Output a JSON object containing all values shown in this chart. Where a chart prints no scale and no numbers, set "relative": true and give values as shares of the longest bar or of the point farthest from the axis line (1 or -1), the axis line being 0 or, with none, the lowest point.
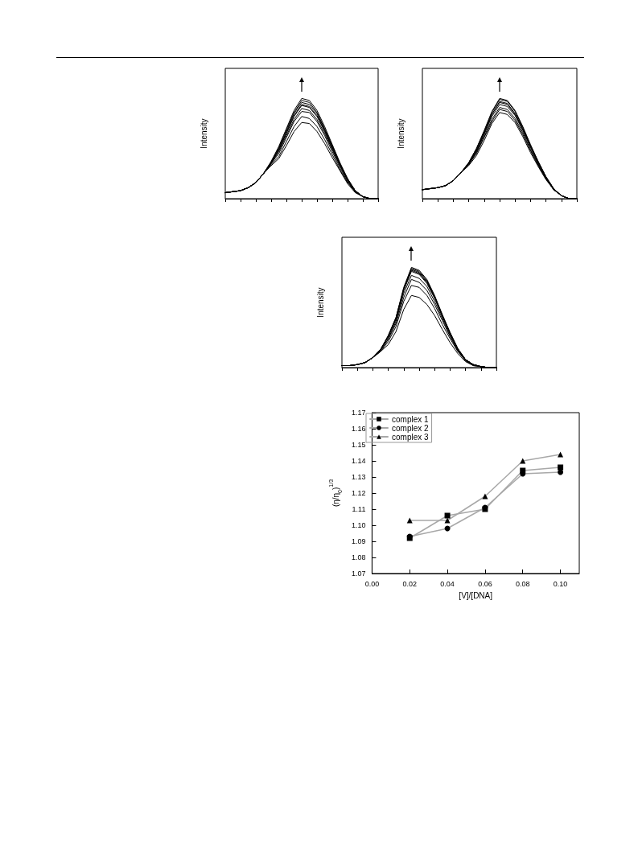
{
  "chart_data": [
    {
      "type": "line",
      "ylabel": "Intensity",
      "relative": true,
      "grid": false,
      "categories": [
        null,
        null,
        null,
        null,
        null,
        null,
        null,
        null,
        null,
        null,
        null,
        null,
        null,
        null,
        null,
        null,
        null,
        null,
        null,
        null,
        null
      ],
      "series": [
        {
          "color": "#000000",
          "values": [
            0.06,
            0.07,
            0.08,
            0.11,
            0.16,
            0.25,
            0.37,
            0.52,
            0.7,
            0.88,
            1,
            0.98,
            0.88,
            0.72,
            0.54,
            0.36,
            0.2,
            0.08,
            0.02,
            0,
            0
          ]
        },
        {
          "color": "#000000",
          "values": [
            0.06,
            0.07,
            0.08,
            0.11,
            0.16,
            0.25,
            0.37,
            0.51,
            0.69,
            0.86,
            0.98,
            0.96,
            0.86,
            0.7,
            0.53,
            0.35,
            0.2,
            0.08,
            0.02,
            0,
            0
          ]
        },
        {
          "color": "#000000",
          "values": [
            0.06,
            0.07,
            0.08,
            0.11,
            0.16,
            0.25,
            0.36,
            0.5,
            0.67,
            0.85,
            0.96,
            0.94,
            0.85,
            0.69,
            0.52,
            0.35,
            0.19,
            0.08,
            0.02,
            0,
            0
          ]
        },
        {
          "color": "#000000",
          "values": [
            0.06,
            0.07,
            0.08,
            0.11,
            0.16,
            0.25,
            0.36,
            0.49,
            0.66,
            0.83,
            0.94,
            0.92,
            0.83,
            0.68,
            0.51,
            0.34,
            0.19,
            0.08,
            0.02,
            0,
            0
          ]
        },
        {
          "color": "#000000",
          "values": [
            0.06,
            0.07,
            0.08,
            0.11,
            0.16,
            0.25,
            0.36,
            0.48,
            0.65,
            0.82,
            0.93,
            0.91,
            0.82,
            0.67,
            0.5,
            0.33,
            0.19,
            0.07,
            0.02,
            0,
            0
          ]
        },
        {
          "color": "#000000",
          "values": [
            0.06,
            0.07,
            0.08,
            0.11,
            0.16,
            0.25,
            0.35,
            0.47,
            0.63,
            0.79,
            0.9,
            0.88,
            0.79,
            0.65,
            0.49,
            0.33,
            0.18,
            0.07,
            0.02,
            0,
            0
          ]
        },
        {
          "color": "#000000",
          "values": [
            0.06,
            0.07,
            0.08,
            0.11,
            0.16,
            0.25,
            0.35,
            0.45,
            0.61,
            0.77,
            0.87,
            0.86,
            0.77,
            0.63,
            0.47,
            0.31,
            0.17,
            0.07,
            0.02,
            0,
            0
          ]
        },
        {
          "color": "#000000",
          "values": [
            0.06,
            0.07,
            0.08,
            0.11,
            0.16,
            0.25,
            0.34,
            0.42,
            0.57,
            0.72,
            0.82,
            0.8,
            0.72,
            0.59,
            0.44,
            0.29,
            0.16,
            0.07,
            0.02,
            0,
            0
          ]
        },
        {
          "color": "#000000",
          "values": [
            0.06,
            0.07,
            0.08,
            0.11,
            0.16,
            0.25,
            0.33,
            0.4,
            0.53,
            0.67,
            0.76,
            0.75,
            0.67,
            0.55,
            0.41,
            0.28,
            0.15,
            0.06,
            0.02,
            0,
            0
          ]
        }
      ]
    },
    {
      "type": "line",
      "ylabel": "Intensity",
      "relative": true,
      "grid": false,
      "categories": [
        null,
        null,
        null,
        null,
        null,
        null,
        null,
        null,
        null,
        null,
        null,
        null,
        null,
        null,
        null,
        null,
        null,
        null,
        null,
        null,
        null
      ],
      "series": [
        {
          "color": "#000000",
          "values": [
            0.09,
            0.1,
            0.11,
            0.13,
            0.18,
            0.26,
            0.36,
            0.5,
            0.68,
            0.87,
            1,
            0.98,
            0.88,
            0.72,
            0.54,
            0.37,
            0.22,
            0.1,
            0.03,
            0,
            0
          ]
        },
        {
          "color": "#000000",
          "values": [
            0.09,
            0.1,
            0.11,
            0.13,
            0.18,
            0.26,
            0.36,
            0.5,
            0.67,
            0.86,
            0.99,
            0.97,
            0.87,
            0.71,
            0.53,
            0.37,
            0.22,
            0.1,
            0.03,
            0,
            0
          ]
        },
        {
          "color": "#000000",
          "values": [
            0.09,
            0.1,
            0.11,
            0.13,
            0.18,
            0.26,
            0.35,
            0.49,
            0.66,
            0.84,
            0.97,
            0.95,
            0.85,
            0.7,
            0.52,
            0.36,
            0.21,
            0.1,
            0.03,
            0,
            0
          ]
        },
        {
          "color": "#000000",
          "values": [
            0.09,
            0.1,
            0.11,
            0.13,
            0.18,
            0.26,
            0.35,
            0.48,
            0.65,
            0.84,
            0.96,
            0.94,
            0.84,
            0.69,
            0.52,
            0.36,
            0.21,
            0.1,
            0.03,
            0,
            0
          ]
        },
        {
          "color": "#000000",
          "values": [
            0.09,
            0.1,
            0.11,
            0.13,
            0.18,
            0.26,
            0.35,
            0.47,
            0.64,
            0.82,
            0.94,
            0.92,
            0.83,
            0.68,
            0.51,
            0.35,
            0.21,
            0.09,
            0.03,
            0,
            0
          ]
        },
        {
          "color": "#000000",
          "values": [
            0.09,
            0.1,
            0.11,
            0.13,
            0.18,
            0.26,
            0.34,
            0.46,
            0.62,
            0.79,
            0.91,
            0.89,
            0.8,
            0.66,
            0.49,
            0.34,
            0.2,
            0.09,
            0.03,
            0,
            0
          ]
        },
        {
          "color": "#000000",
          "values": [
            0.09,
            0.1,
            0.11,
            0.13,
            0.18,
            0.26,
            0.34,
            0.45,
            0.61,
            0.77,
            0.89,
            0.87,
            0.78,
            0.64,
            0.48,
            0.33,
            0.2,
            0.09,
            0.03,
            0,
            0
          ]
        },
        {
          "color": "#000000",
          "values": [
            0.09,
            0.1,
            0.11,
            0.13,
            0.18,
            0.26,
            0.33,
            0.43,
            0.58,
            0.75,
            0.86,
            0.84,
            0.76,
            0.62,
            0.46,
            0.32,
            0.19,
            0.09,
            0.03,
            0,
            0
          ]
        }
      ]
    },
    {
      "type": "line",
      "ylabel": "Intensity",
      "relative": true,
      "grid": false,
      "categories": [
        null,
        null,
        null,
        null,
        null,
        null,
        null,
        null,
        null,
        null,
        null,
        null,
        null,
        null,
        null,
        null,
        null,
        null,
        null,
        null,
        null
      ],
      "series": [
        {
          "color": "#000000",
          "values": [
            0.02,
            0.02,
            0.03,
            0.05,
            0.1,
            0.18,
            0.32,
            0.5,
            0.8,
            1,
            0.97,
            0.88,
            0.72,
            0.53,
            0.35,
            0.19,
            0.08,
            0.03,
            0.01,
            0,
            0
          ]
        },
        {
          "color": "#000000",
          "values": [
            0.02,
            0.02,
            0.03,
            0.05,
            0.1,
            0.18,
            0.32,
            0.5,
            0.79,
            0.99,
            0.96,
            0.87,
            0.71,
            0.52,
            0.35,
            0.19,
            0.08,
            0.03,
            0.01,
            0,
            0
          ]
        },
        {
          "color": "#000000",
          "values": [
            0.02,
            0.02,
            0.03,
            0.05,
            0.1,
            0.18,
            0.31,
            0.49,
            0.78,
            0.98,
            0.95,
            0.86,
            0.71,
            0.52,
            0.34,
            0.19,
            0.08,
            0.03,
            0.01,
            0,
            0
          ]
        },
        {
          "color": "#000000",
          "values": [
            0.02,
            0.02,
            0.03,
            0.05,
            0.1,
            0.18,
            0.31,
            0.49,
            0.78,
            0.97,
            0.94,
            0.85,
            0.7,
            0.51,
            0.34,
            0.18,
            0.08,
            0.03,
            0.01,
            0,
            0
          ]
        },
        {
          "color": "#000000",
          "values": [
            0.02,
            0.02,
            0.03,
            0.05,
            0.1,
            0.18,
            0.31,
            0.48,
            0.77,
            0.96,
            0.93,
            0.84,
            0.69,
            0.51,
            0.34,
            0.18,
            0.08,
            0.03,
            0.01,
            0,
            0
          ]
        },
        {
          "color": "#000000",
          "values": [
            0.02,
            0.02,
            0.03,
            0.05,
            0.1,
            0.17,
            0.29,
            0.46,
            0.74,
            0.92,
            0.89,
            0.81,
            0.66,
            0.49,
            0.32,
            0.17,
            0.07,
            0.03,
            0.01,
            0,
            0
          ]
        },
        {
          "color": "#000000",
          "values": [
            0.02,
            0.02,
            0.03,
            0.05,
            0.1,
            0.17,
            0.28,
            0.44,
            0.7,
            0.88,
            0.85,
            0.77,
            0.63,
            0.47,
            0.31,
            0.17,
            0.07,
            0.03,
            0.01,
            0,
            0
          ]
        },
        {
          "color": "#000000",
          "values": [
            0.02,
            0.02,
            0.03,
            0.05,
            0.1,
            0.16,
            0.26,
            0.41,
            0.66,
            0.82,
            0.8,
            0.72,
            0.59,
            0.43,
            0.29,
            0.16,
            0.07,
            0.02,
            0.01,
            0,
            0
          ]
        },
        {
          "color": "#000000",
          "values": [
            0.02,
            0.02,
            0.03,
            0.05,
            0.1,
            0.16,
            0.23,
            0.36,
            0.58,
            0.72,
            0.7,
            0.63,
            0.52,
            0.38,
            0.25,
            0.14,
            0.06,
            0.02,
            0.01,
            0,
            0
          ]
        }
      ]
    },
    {
      "type": "line",
      "xlabel": "[V]/[DNA]",
      "ylabel": "(η/η$_{0}$)$^{1/3}$",
      "legend": "top left",
      "grid": false,
      "x": [
        0.02,
        0.04,
        0.06,
        0.08,
        0.1
      ],
      "xlim": [
        0,
        0.11
      ],
      "xticks": [
        {
          "value": 0,
          "label": "0.00"
        },
        {
          "value": 0.02,
          "label": "0.02"
        },
        {
          "value": 0.04,
          "label": "0.04"
        },
        {
          "value": 0.06,
          "label": "0.06"
        },
        {
          "value": 0.08,
          "label": "0.08"
        },
        {
          "value": 0.1,
          "label": "0.10"
        }
      ],
      "ylim": [
        1.07,
        1.17
      ],
      "yticks": [
        {
          "value": 1.07,
          "label": "1.07"
        },
        {
          "value": 1.08,
          "label": "1.08"
        },
        {
          "value": 1.09,
          "label": "1.09"
        },
        {
          "value": 1.1,
          "label": "1.10"
        },
        {
          "value": 1.11,
          "label": "1.11"
        },
        {
          "value": 1.12,
          "label": "1.12"
        },
        {
          "value": 1.13,
          "label": "1.13"
        },
        {
          "value": 1.14,
          "label": "1.14"
        },
        {
          "value": 1.15,
          "label": "1.15"
        },
        {
          "value": 1.16,
          "label": "1.16"
        },
        {
          "value": 1.17,
          "label": "1.17"
        }
      ],
      "series": [
        {
          "name": "complex 1",
          "color": "#000000",
          "marker": "square",
          "values": [
            1.092,
            1.106,
            1.11,
            1.134,
            1.136
          ]
        },
        {
          "name": "complex 2",
          "color": "#000000",
          "marker": "circle",
          "values": [
            1.093,
            1.098,
            1.111,
            1.132,
            1.133
          ]
        },
        {
          "name": "complex 3",
          "color": "#000000",
          "marker": "triangle",
          "values": [
            1.103,
            1.103,
            1.118,
            1.14,
            1.144
          ]
        }
      ]
    }
  ]
}
